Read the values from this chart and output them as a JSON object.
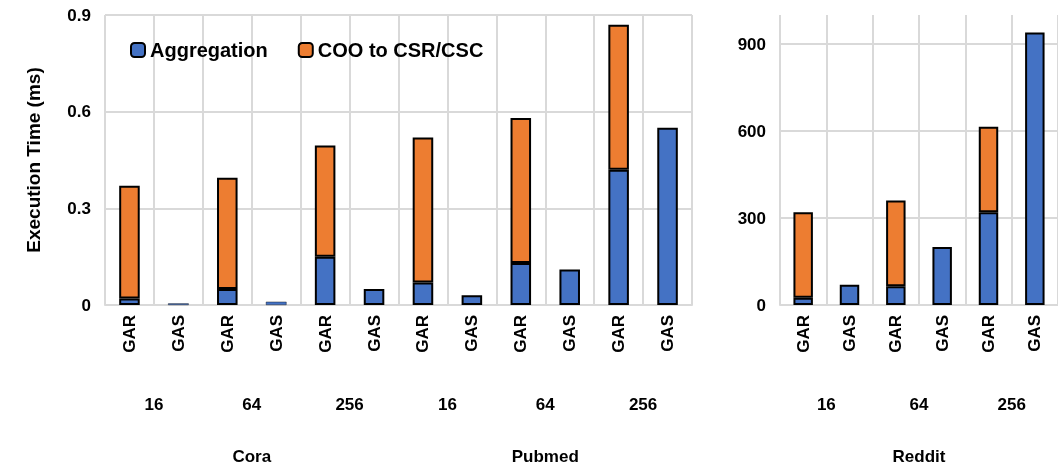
{
  "chart_data": [
    {
      "type": "bar",
      "stacked": true,
      "ylabel": "Execution Time (ms)",
      "legend": "top left",
      "grid": true,
      "categories": [
        "GAR",
        "GAS",
        "GAR",
        "GAS",
        "GAR",
        "GAS",
        "GAR",
        "GAS",
        "GAR",
        "GAS",
        "GAR",
        "GAS"
      ],
      "series": [
        {
          "name": "Aggregation",
          "color": "#4472c4",
          "values": [
            0.02,
            0.005,
            0.05,
            0.01,
            0.15,
            0.05,
            0.07,
            0.03,
            0.13,
            0.11,
            0.42,
            0.55
          ]
        },
        {
          "name": "COO to CSR/CSC",
          "color": "#ed7d31",
          "values": [
            0.35,
            null,
            0.345,
            null,
            0.345,
            null,
            0.45,
            null,
            0.45,
            null,
            0.45,
            null
          ]
        }
      ],
      "ylim": [
        0,
        0.9
      ],
      "yticks": [
        0,
        0.3,
        0.6,
        0.9
      ],
      "annotations": [
        "16",
        "64",
        "256",
        "16",
        "64",
        "256",
        "Cora",
        "Pubmed"
      ]
    },
    {
      "type": "bar",
      "stacked": true,
      "grid": true,
      "categories": [
        "GAR",
        "GAS",
        "GAR",
        "GAS",
        "GAR",
        "GAS"
      ],
      "series": [
        {
          "color": "#4472c4",
          "values": [
            25,
            70,
            65,
            200,
            320,
            940
          ]
        },
        {
          "color": "#ed7d31",
          "values": [
            295,
            null,
            295,
            null,
            295,
            null
          ]
        }
      ],
      "ylim": [
        0,
        1000
      ],
      "yticks": [
        0,
        300,
        600,
        900
      ],
      "annotations": [
        "16",
        "64",
        "256",
        "Reddit"
      ]
    }
  ]
}
